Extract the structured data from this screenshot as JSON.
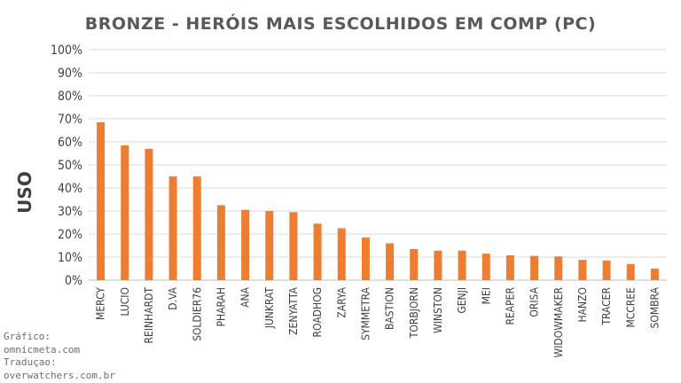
{
  "chart_data": {
    "type": "bar",
    "title": "BRONZE - HERÓIS MAIS ESCOLHIDOS EM COMP (PC)",
    "xlabel": "",
    "ylabel": "USO",
    "ylim": [
      0,
      100
    ],
    "yticks": [
      "0%",
      "10%",
      "20%",
      "30%",
      "40%",
      "50%",
      "60%",
      "70%",
      "80%",
      "90%",
      "100%"
    ],
    "grid": true,
    "bar_color": "#ED7D31",
    "categories": [
      "MERCY",
      "LUCIO",
      "REINHARDT",
      "D.VA",
      "SOLDIER76",
      "PHARAH",
      "ANA",
      "JUNKRAT",
      "ZENYATTA",
      "ROADHOG",
      "ZARYA",
      "SYMMETRA",
      "BASTION",
      "TORBJORN",
      "WINSTON",
      "GENJI",
      "MEI",
      "REAPER",
      "ORISA",
      "WIDOWMAKER",
      "HANZO",
      "TRACER",
      "MCCREE",
      "SOMBRA"
    ],
    "values": [
      68.5,
      58.5,
      57,
      45,
      45,
      32.5,
      30.5,
      30,
      29.5,
      24.5,
      22.5,
      18.5,
      16,
      13.5,
      12.8,
      12.8,
      11.5,
      10.8,
      10.5,
      10.3,
      8.8,
      8.5,
      7,
      5
    ]
  },
  "credits": {
    "line1": "Gráfico:",
    "line2": "omnicmeta.com",
    "line3": "Traduçao:",
    "line4": "overwatchers.com.br"
  }
}
